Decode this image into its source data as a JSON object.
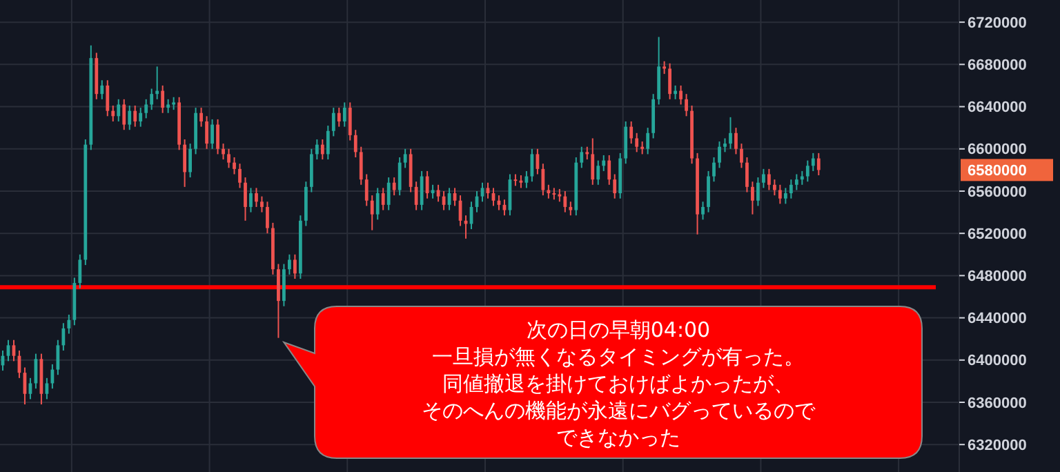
{
  "chart_data": {
    "type": "candlestick",
    "colors": [
      "#26a69a",
      "#26a69a",
      "#ef5350",
      "#ef5350",
      "#ef5350",
      "#26a69a",
      "#26a69a",
      "#ef5350",
      "#26a69a",
      "#26a69a",
      "#26a69a",
      "#26a69a",
      "#26a69a",
      "#26a69a",
      "#26a69a",
      "#26a69a",
      "#26a69a",
      "#ef5350",
      "#26a69a",
      "#ef5350",
      "#ef5350",
      "#26a69a",
      "#ef5350",
      "#26a69a",
      "#ef5350",
      "#26a69a",
      "#26a69a",
      "#26a69a",
      "#26a69a",
      "#ef5350",
      "#26a69a",
      "#26a69a",
      "#ef5350",
      "#ef5350",
      "#26a69a",
      "#26a69a",
      "#ef5350",
      "#ef5350",
      "#26a69a",
      "#ef5350",
      "#ef5350",
      "#ef5350",
      "#ef5350",
      "#ef5350",
      "#ef5350",
      "#26a69a",
      "#ef5350",
      "#ef5350",
      "#ef5350",
      "#ef5350",
      "#ef5350",
      "#26a69a",
      "#26a69a",
      "#ef5350",
      "#26a69a",
      "#26a69a",
      "#26a69a",
      "#26a69a",
      "#ef5350",
      "#26a69a",
      "#26a69a",
      "#ef5350",
      "#26a69a",
      "#ef5350",
      "#ef5350",
      "#ef5350",
      "#ef5350",
      "#ef5350",
      "#26a69a",
      "#ef5350",
      "#26a69a",
      "#ef5350",
      "#26a69a",
      "#26a69a",
      "#ef5350",
      "#ef5350",
      "#26a69a",
      "#ef5350",
      "#26a69a",
      "#ef5350",
      "#ef5350",
      "#26a69a",
      "#ef5350",
      "#ef5350",
      "#ef5350",
      "#26a69a",
      "#26a69a",
      "#26a69a",
      "#ef5350",
      "#ef5350",
      "#ef5350",
      "#ef5350",
      "#26a69a",
      "#ef5350",
      "#ef5350",
      "#26a69a",
      "#26a69a",
      "#ef5350",
      "#ef5350",
      "#ef5350",
      "#ef5350",
      "#ef5350",
      "#ef5350",
      "#ef5350",
      "#26a69a",
      "#26a69a",
      "#ef5350",
      "#ef5350",
      "#26a69a",
      "#26a69a",
      "#ef5350",
      "#ef5350",
      "#26a69a",
      "#26a69a",
      "#ef5350",
      "#ef5350",
      "#ef5350",
      "#26a69a",
      "#26a69a",
      "#26a69a",
      "#ef5350",
      "#ef5350",
      "#26a69a",
      "#ef5350",
      "#ef5350",
      "#ef5350",
      "#ef5350",
      "#26a69a",
      "#26a69a",
      "#26a69a",
      "#26a69a",
      "#26a69a",
      "#26a69a",
      "#ef5350",
      "#ef5350",
      "#ef5350",
      "#ef5350",
      "#26a69a",
      "#26a69a",
      "#ef5350",
      "#ef5350",
      "#ef5350",
      "#26a69a",
      "#26a69a",
      "#26a69a",
      "#26a69a",
      "#26a69a",
      "#26a69a",
      "#ef5350",
      null,
      null,
      null,
      null,
      null,
      null,
      null,
      null,
      null,
      null,
      null,
      null,
      null,
      null,
      null,
      null,
      null,
      null,
      null,
      null,
      null,
      null,
      null,
      null,
      null
    ],
    "grid": true,
    "tick_labels": "y",
    "ylim": [
      6294000,
      6741000
    ],
    "yticks": [
      6320000,
      6360000,
      6400000,
      6440000,
      6480000,
      6520000,
      6560000,
      6600000,
      6640000,
      6680000,
      6720000
    ],
    "ref_lines": [
      {
        "axis": "y",
        "value": 6469000,
        "color": "#ff0000"
      }
    ],
    "annotations": [
      "6580000",
      "次の日の早朝04:00一旦損が無くなるタイミングが有った。同値撤退を掛けておけばよかったが、そのへんの機能が永遠にバグっているのでできなかった"
    ],
    "categories": [
      null,
      null,
      null,
      null,
      null,
      null,
      null,
      null,
      null,
      null,
      null,
      null,
      null,
      null,
      null,
      null,
      null,
      null,
      null,
      null,
      null,
      null,
      null,
      null,
      null,
      null,
      null,
      null,
      null,
      null,
      null,
      null,
      null,
      null,
      null,
      null,
      null,
      null,
      null,
      null,
      null,
      null,
      null,
      null,
      null,
      null,
      null,
      null,
      null,
      null,
      null,
      null,
      null,
      null,
      null,
      null,
      null,
      null,
      null,
      null,
      null,
      null,
      null,
      null,
      null,
      null,
      null,
      null,
      null,
      null,
      null,
      null,
      null,
      null,
      null,
      null,
      null,
      null,
      null,
      null,
      null,
      null,
      null,
      null,
      null,
      null,
      null,
      null,
      null,
      null,
      null,
      null,
      null,
      null,
      null,
      null,
      null,
      null,
      null,
      null,
      null,
      null,
      null,
      null,
      null,
      null,
      null,
      null,
      null,
      null,
      null,
      null,
      null,
      null,
      null,
      null,
      null,
      null,
      null,
      null,
      null,
      null,
      null,
      null,
      null,
      null,
      null,
      null,
      null,
      null,
      null,
      null,
      null,
      null,
      null,
      null,
      null,
      null,
      null,
      null,
      null,
      null,
      null,
      null,
      null,
      null,
      null,
      null,
      null,
      null,
      null,
      null,
      null,
      null,
      null,
      null,
      null,
      null,
      null,
      null,
      null,
      null,
      null,
      null,
      null,
      null,
      null,
      null,
      null,
      null,
      null,
      null,
      null,
      null
    ],
    "ohlc": [
      [
        6395000,
        6409000,
        6390000,
        6404000
      ],
      [
        6404000,
        6419000,
        6399000,
        6414000
      ],
      [
        6414000,
        6419000,
        6399000,
        6404000
      ],
      [
        6404000,
        6409000,
        6383000,
        6388000
      ],
      [
        6388000,
        6393000,
        6358000,
        6368000
      ],
      [
        6368000,
        6383000,
        6363000,
        6378000
      ],
      [
        6378000,
        6406000,
        6373000,
        6401000
      ],
      [
        6401000,
        6406000,
        6358000,
        6368000
      ],
      [
        6368000,
        6383000,
        6363000,
        6378000
      ],
      [
        6378000,
        6396000,
        6373000,
        6391000
      ],
      [
        6391000,
        6419000,
        6386000,
        6414000
      ],
      [
        6414000,
        6435000,
        6409000,
        6430000
      ],
      [
        6430000,
        6443000,
        6425000,
        6438000
      ],
      [
        6438000,
        6478000,
        6433000,
        6473000
      ],
      [
        6473000,
        6500000,
        6468000,
        6495000
      ],
      [
        6495000,
        6609000,
        6490000,
        6604000
      ],
      [
        6604000,
        6698000,
        6599000,
        6686000
      ],
      [
        6686000,
        6691000,
        6647000,
        6652000
      ],
      [
        6652000,
        6665000,
        6647000,
        6660000
      ],
      [
        6660000,
        6665000,
        6631000,
        6636000
      ],
      [
        6636000,
        6641000,
        6626000,
        6631000
      ],
      [
        6631000,
        6647000,
        6626000,
        6642000
      ],
      [
        6642000,
        6647000,
        6618000,
        6623000
      ],
      [
        6623000,
        6641000,
        6618000,
        6636000
      ],
      [
        6636000,
        6641000,
        6621000,
        6626000
      ],
      [
        6626000,
        6639000,
        6621000,
        6634000
      ],
      [
        6634000,
        6647000,
        6629000,
        6642000
      ],
      [
        6642000,
        6657000,
        6637000,
        6652000
      ],
      [
        6652000,
        6678000,
        6647000,
        6655000
      ],
      [
        6655000,
        6660000,
        6634000,
        6639000
      ],
      [
        6639000,
        6647000,
        6634000,
        6642000
      ],
      [
        6642000,
        6649000,
        6637000,
        6644000
      ],
      [
        6644000,
        6649000,
        6599000,
        6604000
      ],
      [
        6604000,
        6609000,
        6564000,
        6578000
      ],
      [
        6578000,
        6605000,
        6573000,
        6600000
      ],
      [
        6600000,
        6639000,
        6595000,
        6634000
      ],
      [
        6634000,
        6639000,
        6621000,
        6626000
      ],
      [
        6626000,
        6631000,
        6600000,
        6605000
      ],
      [
        6605000,
        6628000,
        6600000,
        6623000
      ],
      [
        6623000,
        6628000,
        6595000,
        6600000
      ],
      [
        6600000,
        6605000,
        6590000,
        6595000
      ],
      [
        6595000,
        6600000,
        6582000,
        6587000
      ],
      [
        6587000,
        6592000,
        6576000,
        6581000
      ],
      [
        6581000,
        6586000,
        6563000,
        6568000
      ],
      [
        6568000,
        6573000,
        6532000,
        6545000
      ],
      [
        6545000,
        6563000,
        6540000,
        6558000
      ],
      [
        6558000,
        6563000,
        6545000,
        6550000
      ],
      [
        6550000,
        6555000,
        6540000,
        6545000
      ],
      [
        6545000,
        6550000,
        6520000,
        6525000
      ],
      [
        6525000,
        6530000,
        6481000,
        6486000
      ],
      [
        6486000,
        6491000,
        6421000,
        6456000
      ],
      [
        6456000,
        6491000,
        6451000,
        6486000
      ],
      [
        6486000,
        6500000,
        6481000,
        6495000
      ],
      [
        6495000,
        6500000,
        6477000,
        6482000
      ],
      [
        6482000,
        6537000,
        6477000,
        6532000
      ],
      [
        6532000,
        6569000,
        6527000,
        6564000
      ],
      [
        6564000,
        6600000,
        6559000,
        6595000
      ],
      [
        6595000,
        6609000,
        6590000,
        6604000
      ],
      [
        6604000,
        6609000,
        6590000,
        6595000
      ],
      [
        6595000,
        6622000,
        6590000,
        6617000
      ],
      [
        6617000,
        6639000,
        6612000,
        6634000
      ],
      [
        6634000,
        6639000,
        6621000,
        6626000
      ],
      [
        6626000,
        6644000,
        6621000,
        6639000
      ],
      [
        6639000,
        6644000,
        6608000,
        6613000
      ],
      [
        6613000,
        6618000,
        6592000,
        6597000
      ],
      [
        6597000,
        6602000,
        6566000,
        6571000
      ],
      [
        6571000,
        6576000,
        6546000,
        6551000
      ],
      [
        6551000,
        6556000,
        6523000,
        6538000
      ],
      [
        6538000,
        6563000,
        6533000,
        6558000
      ],
      [
        6558000,
        6563000,
        6542000,
        6547000
      ],
      [
        6547000,
        6573000,
        6542000,
        6568000
      ],
      [
        6568000,
        6573000,
        6556000,
        6561000
      ],
      [
        6561000,
        6592000,
        6556000,
        6587000
      ],
      [
        6587000,
        6600000,
        6582000,
        6595000
      ],
      [
        6595000,
        6600000,
        6559000,
        6564000
      ],
      [
        6564000,
        6569000,
        6542000,
        6547000
      ],
      [
        6547000,
        6579000,
        6542000,
        6574000
      ],
      [
        6574000,
        6579000,
        6553000,
        6558000
      ],
      [
        6558000,
        6566000,
        6553000,
        6561000
      ],
      [
        6561000,
        6566000,
        6550000,
        6555000
      ],
      [
        6555000,
        6560000,
        6542000,
        6547000
      ],
      [
        6547000,
        6563000,
        6542000,
        6558000
      ],
      [
        6558000,
        6563000,
        6546000,
        6551000
      ],
      [
        6551000,
        6556000,
        6527000,
        6532000
      ],
      [
        6532000,
        6537000,
        6515000,
        6529000
      ],
      [
        6529000,
        6550000,
        6524000,
        6545000
      ],
      [
        6545000,
        6560000,
        6540000,
        6555000
      ],
      [
        6555000,
        6568000,
        6550000,
        6563000
      ],
      [
        6563000,
        6568000,
        6553000,
        6558000
      ],
      [
        6558000,
        6563000,
        6546000,
        6551000
      ],
      [
        6551000,
        6556000,
        6542000,
        6547000
      ],
      [
        6547000,
        6552000,
        6537000,
        6542000
      ],
      [
        6542000,
        6576000,
        6537000,
        6571000
      ],
      [
        6571000,
        6576000,
        6565000,
        6570000
      ],
      [
        6570000,
        6575000,
        6563000,
        6568000
      ],
      [
        6568000,
        6579000,
        6563000,
        6574000
      ],
      [
        6574000,
        6600000,
        6569000,
        6595000
      ],
      [
        6595000,
        6600000,
        6576000,
        6581000
      ],
      [
        6581000,
        6586000,
        6556000,
        6561000
      ],
      [
        6561000,
        6566000,
        6553000,
        6558000
      ],
      [
        6558000,
        6563000,
        6552000,
        6557000
      ],
      [
        6557000,
        6562000,
        6550000,
        6555000
      ],
      [
        6555000,
        6560000,
        6540000,
        6545000
      ],
      [
        6545000,
        6550000,
        6537000,
        6542000
      ],
      [
        6542000,
        6592000,
        6537000,
        6587000
      ],
      [
        6587000,
        6602000,
        6582000,
        6597000
      ],
      [
        6597000,
        6602000,
        6590000,
        6595000
      ],
      [
        6595000,
        6610000,
        6566000,
        6571000
      ],
      [
        6571000,
        6589000,
        6566000,
        6584000
      ],
      [
        6584000,
        6594000,
        6579000,
        6589000
      ],
      [
        6589000,
        6594000,
        6566000,
        6571000
      ],
      [
        6571000,
        6576000,
        6553000,
        6558000
      ],
      [
        6558000,
        6596000,
        6553000,
        6591000
      ],
      [
        6591000,
        6626000,
        6586000,
        6621000
      ],
      [
        6621000,
        6626000,
        6605000,
        6610000
      ],
      [
        6610000,
        6615000,
        6597000,
        6602000
      ],
      [
        6602000,
        6607000,
        6595000,
        6600000
      ],
      [
        6600000,
        6620000,
        6595000,
        6615000
      ],
      [
        6615000,
        6652000,
        6610000,
        6647000
      ],
      [
        6647000,
        6706000,
        6642000,
        6678000
      ],
      [
        6678000,
        6683000,
        6671000,
        6676000
      ],
      [
        6676000,
        6681000,
        6647000,
        6652000
      ],
      [
        6652000,
        6660000,
        6647000,
        6655000
      ],
      [
        6655000,
        6660000,
        6642000,
        6647000
      ],
      [
        6647000,
        6652000,
        6631000,
        6636000
      ],
      [
        6636000,
        6641000,
        6586000,
        6591000
      ],
      [
        6591000,
        6596000,
        6519000,
        6538000
      ],
      [
        6538000,
        6550000,
        6533000,
        6545000
      ],
      [
        6545000,
        6579000,
        6540000,
        6574000
      ],
      [
        6574000,
        6592000,
        6569000,
        6587000
      ],
      [
        6587000,
        6607000,
        6582000,
        6602000
      ],
      [
        6602000,
        6610000,
        6597000,
        6605000
      ],
      [
        6605000,
        6630000,
        6600000,
        6615000
      ],
      [
        6615000,
        6620000,
        6595000,
        6600000
      ],
      [
        6600000,
        6605000,
        6582000,
        6587000
      ],
      [
        6587000,
        6592000,
        6559000,
        6564000
      ],
      [
        6564000,
        6569000,
        6538000,
        6551000
      ],
      [
        6551000,
        6573000,
        6546000,
        6568000
      ],
      [
        6568000,
        6581000,
        6563000,
        6576000
      ],
      [
        6576000,
        6581000,
        6561000,
        6566000
      ],
      [
        6566000,
        6571000,
        6556000,
        6561000
      ],
      [
        6561000,
        6566000,
        6548000,
        6553000
      ],
      [
        6553000,
        6563000,
        6548000,
        6558000
      ],
      [
        6558000,
        6571000,
        6553000,
        6566000
      ],
      [
        6566000,
        6576000,
        6561000,
        6571000
      ],
      [
        6571000,
        6579000,
        6566000,
        6574000
      ],
      [
        6574000,
        6589000,
        6569000,
        6584000
      ],
      [
        6584000,
        6596000,
        6579000,
        6591000
      ],
      [
        6591000,
        6596000,
        6575000,
        6580000
      ],
      null,
      null,
      null,
      null,
      null,
      null,
      null,
      null,
      null,
      null,
      null,
      null,
      null,
      null,
      null,
      null,
      null,
      null,
      null,
      null,
      null,
      null,
      null,
      null,
      null
    ]
  }
}
